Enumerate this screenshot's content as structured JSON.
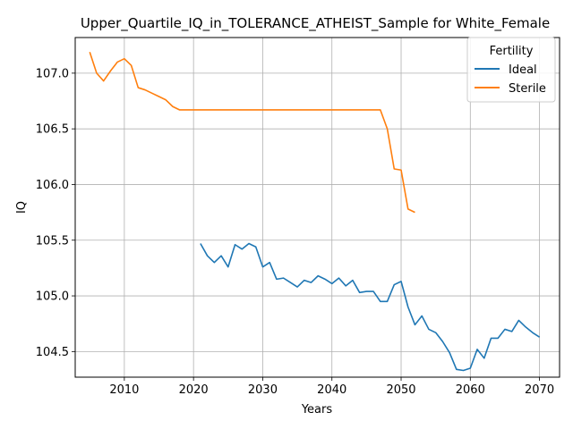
{
  "chart_data": {
    "type": "line",
    "title": "Upper_Quartile_IQ_in_TOLERANCE_ATHEIST_Sample for White_Female",
    "xlabel": "Years",
    "ylabel": "IQ",
    "xlim": [
      2002.9,
      2072.9
    ],
    "ylim": [
      104.27,
      107.32
    ],
    "xticks": [
      2010,
      2020,
      2030,
      2040,
      2050,
      2060,
      2070
    ],
    "yticks": [
      104.5,
      105.0,
      105.5,
      106.0,
      106.5,
      107.0
    ],
    "ytick_labels": [
      "104.5",
      "105.0",
      "105.5",
      "106.0",
      "106.5",
      "107.0"
    ],
    "grid": true,
    "legend": {
      "title": "Fertility",
      "placement": "top-right"
    },
    "series": [
      {
        "name": "Ideal",
        "color": "#1f77b4",
        "x": [
          2021,
          2022,
          2023,
          2024,
          2025,
          2026,
          2027,
          2028,
          2029,
          2030,
          2031,
          2032,
          2033,
          2034,
          2035,
          2036,
          2037,
          2038,
          2039,
          2040,
          2041,
          2042,
          2043,
          2044,
          2045,
          2046,
          2047,
          2048,
          2049,
          2050,
          2051,
          2052,
          2053,
          2054,
          2055,
          2056,
          2057,
          2058,
          2059,
          2060,
          2061,
          2062,
          2063,
          2064,
          2065,
          2066,
          2067,
          2068,
          2069,
          2070
        ],
        "values": [
          105.47,
          105.36,
          105.3,
          105.36,
          105.26,
          105.46,
          105.42,
          105.47,
          105.44,
          105.26,
          105.3,
          105.15,
          105.16,
          105.12,
          105.08,
          105.14,
          105.12,
          105.18,
          105.15,
          105.11,
          105.16,
          105.09,
          105.14,
          105.03,
          105.04,
          105.04,
          104.95,
          104.95,
          105.1,
          105.13,
          104.9,
          104.74,
          104.82,
          104.7,
          104.67,
          104.59,
          104.49,
          104.34,
          104.33,
          104.35,
          104.52,
          104.44,
          104.62,
          104.62,
          104.7,
          104.68,
          104.78,
          104.72,
          104.67,
          104.63
        ]
      },
      {
        "name": "Sterile",
        "color": "#ff7f0e",
        "x": [
          2005,
          2006,
          2007,
          2008,
          2009,
          2010,
          2011,
          2012,
          2013,
          2014,
          2015,
          2016,
          2017,
          2018,
          2019,
          2020,
          2021,
          2022,
          2023,
          2024,
          2025,
          2026,
          2027,
          2028,
          2029,
          2030,
          2031,
          2032,
          2033,
          2034,
          2035,
          2036,
          2037,
          2038,
          2039,
          2040,
          2041,
          2042,
          2043,
          2044,
          2045,
          2046,
          2047,
          2048,
          2049,
          2050,
          2051,
          2052
        ],
        "values": [
          107.19,
          107.0,
          106.93,
          107.02,
          107.1,
          107.13,
          107.07,
          106.87,
          106.85,
          106.82,
          106.79,
          106.76,
          106.7,
          106.67,
          106.67,
          106.67,
          106.67,
          106.67,
          106.67,
          106.67,
          106.67,
          106.67,
          106.67,
          106.67,
          106.67,
          106.67,
          106.67,
          106.67,
          106.67,
          106.67,
          106.67,
          106.67,
          106.67,
          106.67,
          106.67,
          106.67,
          106.67,
          106.67,
          106.67,
          106.67,
          106.67,
          106.67,
          106.67,
          106.5,
          106.14,
          106.13,
          105.78,
          105.75
        ]
      }
    ]
  }
}
